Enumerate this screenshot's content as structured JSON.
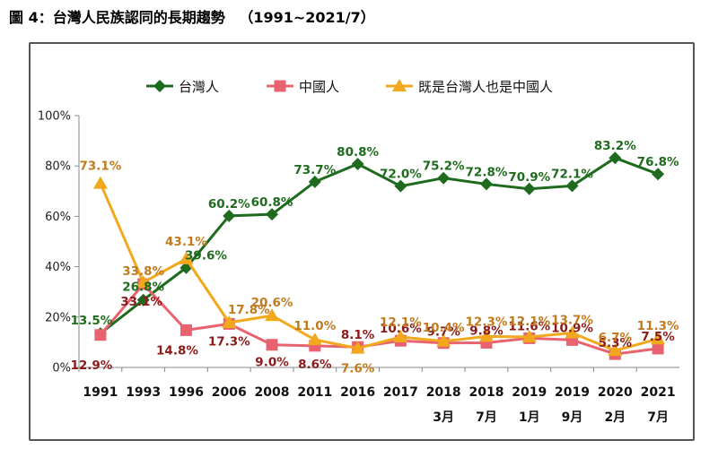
{
  "page": {
    "fig_label": "圖 4：",
    "title": "台灣人民族認同的長期趨勢",
    "period": "（1991~2021/7）"
  },
  "chart_data": {
    "type": "line",
    "title": "台灣人民族認同的長期趨勢",
    "xlabel": "",
    "ylabel": "",
    "ylim": [
      0,
      100
    ],
    "yticks": [
      "0%",
      "20%",
      "40%",
      "60%",
      "80%",
      "100%"
    ],
    "grid": false,
    "legend_position": "top",
    "categories": [
      [
        "1991",
        ""
      ],
      [
        "1993",
        ""
      ],
      [
        "1996",
        ""
      ],
      [
        "2006",
        ""
      ],
      [
        "2008",
        ""
      ],
      [
        "2011",
        ""
      ],
      [
        "2016",
        ""
      ],
      [
        "2017",
        ""
      ],
      [
        "2018",
        "3月"
      ],
      [
        "2018",
        "7月"
      ],
      [
        "2019",
        "1月"
      ],
      [
        "2019",
        "9月"
      ],
      [
        "2020",
        "2月"
      ],
      [
        "2021",
        "7月"
      ]
    ],
    "series": [
      {
        "name": "台灣人",
        "color": "#1e6b1e",
        "marker": "diamond",
        "values": [
          13.5,
          26.8,
          39.6,
          60.2,
          60.8,
          73.7,
          80.8,
          72.0,
          75.2,
          72.8,
          70.9,
          72.1,
          83.2,
          76.8
        ],
        "labels": [
          "13.5%",
          "26.8%",
          "39.6%",
          "60.2%",
          "60.8%",
          "73.7%",
          "80.8%",
          "72.0%",
          "75.2%",
          "72.8%",
          "70.9%",
          "72.1%",
          "83.2%",
          "76.8%"
        ]
      },
      {
        "name": "中國人",
        "color": "#e8636f",
        "label_color": "#8b1a1a",
        "marker": "square",
        "values": [
          12.9,
          33.1,
          14.8,
          17.3,
          9.0,
          8.6,
          8.1,
          10.6,
          9.7,
          9.8,
          11.6,
          10.9,
          5.3,
          7.5
        ],
        "labels": [
          "12.9%",
          "33.1%",
          "14.8%",
          "17.3%",
          "9.0%",
          "8.6%",
          "8.1%",
          "10.6%",
          "9.7%",
          "9.8%",
          "11.6%",
          "10.9%",
          "5.3%",
          "7.5%"
        ]
      },
      {
        "name": "既是台灣人也是中國人",
        "color": "#f2a81d",
        "label_color": "#c17a1e",
        "marker": "triangle",
        "values": [
          73.1,
          33.8,
          43.1,
          17.8,
          20.6,
          11.0,
          7.6,
          12.1,
          10.4,
          12.3,
          12.1,
          13.7,
          6.7,
          11.3
        ],
        "labels": [
          "73.1%",
          "33.8%",
          "43.1%",
          "17.8%",
          "20.6%",
          "11.0%",
          "7.6%",
          "12.1%",
          "10.4%",
          "12.3%",
          "12.1%",
          "13.7%",
          "6.7%",
          "11.3%"
        ]
      }
    ]
  }
}
